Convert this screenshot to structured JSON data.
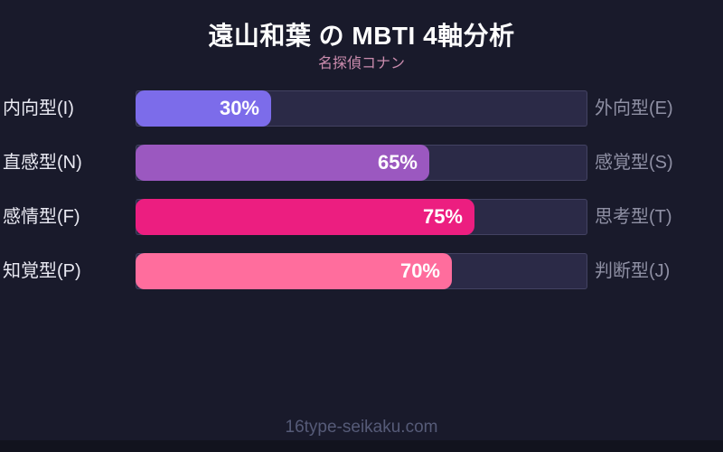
{
  "header": {
    "title": "遠山和葉 の MBTI 4軸分析",
    "subtitle": "名探偵コナン"
  },
  "chart_data": {
    "type": "bar",
    "orientation": "horizontal",
    "value_range": [
      0,
      100
    ],
    "unit": "%",
    "grid": false,
    "legend": false,
    "rows": [
      {
        "left_label": "内向型(I)",
        "right_label": "外向型(E)",
        "value": 30,
        "percent_label": "30%",
        "color": "#7c6cea"
      },
      {
        "left_label": "直感型(N)",
        "right_label": "感覚型(S)",
        "value": 65,
        "percent_label": "65%",
        "color": "#9b58c0"
      },
      {
        "left_label": "感情型(F)",
        "right_label": "思考型(T)",
        "value": 75,
        "percent_label": "75%",
        "color": "#ec1e80"
      },
      {
        "left_label": "知覚型(P)",
        "right_label": "判断型(J)",
        "value": 70,
        "percent_label": "70%",
        "color": "#ff6d9d"
      }
    ],
    "colors": {
      "background": "#191a2b",
      "track": "#2b2a47",
      "title_text": "#ffffff",
      "subtitle_text": "#cb8cae",
      "left_label_text": "#e9e9f2",
      "right_label_text": "#8f90a4",
      "footer_text": "#565b78"
    }
  },
  "footer": {
    "site": "16type-seikaku.com"
  }
}
